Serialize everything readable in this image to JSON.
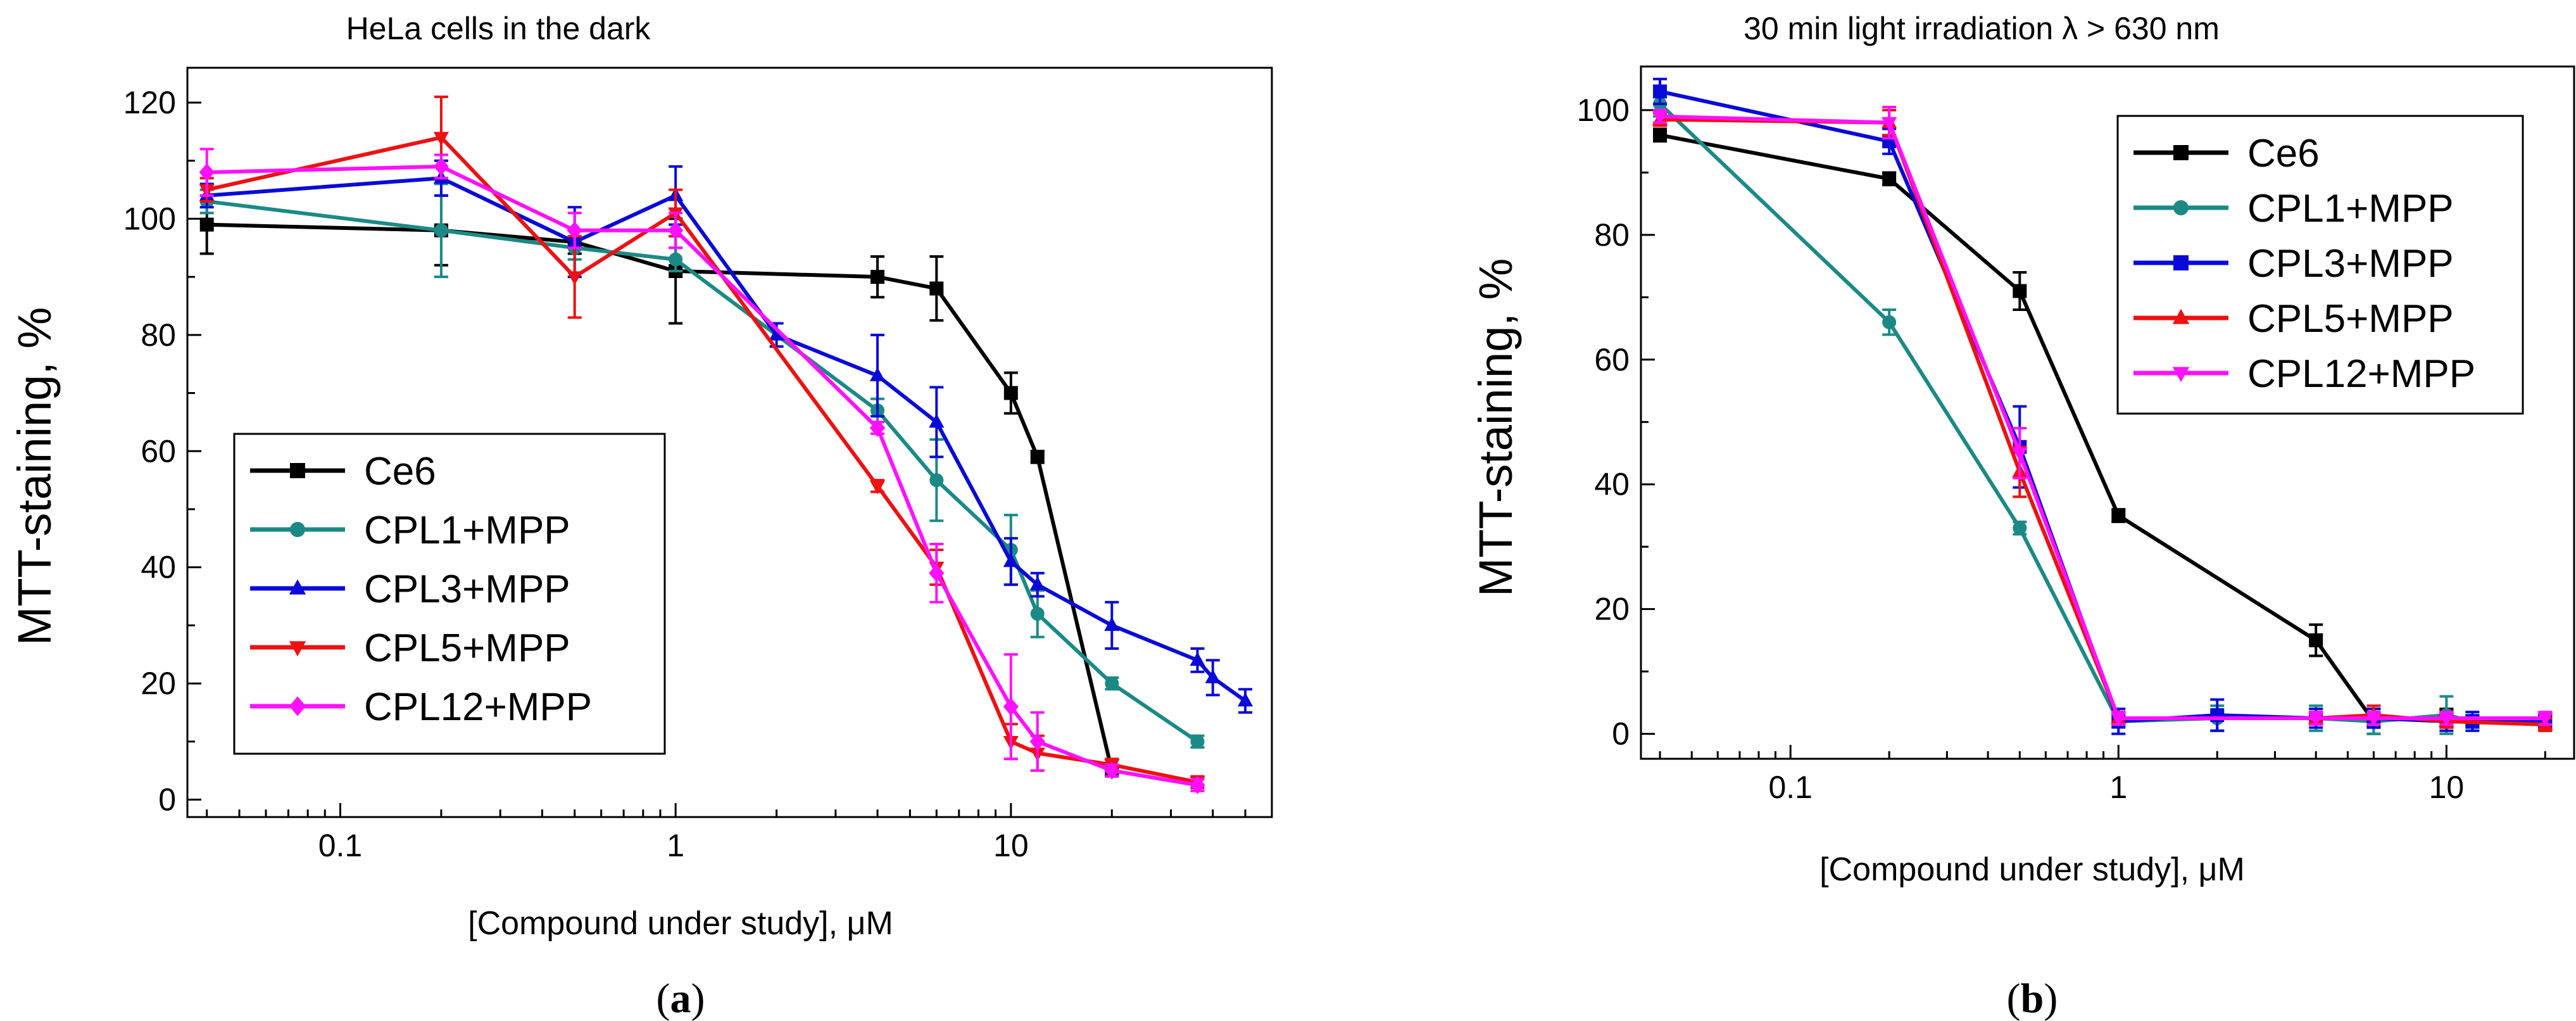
{
  "chart_data": [
    {
      "type": "line",
      "panel_label": "a",
      "title": "HeLa cells in the dark",
      "xlabel": "[Compound under study], μM",
      "ylabel": "MTT-staining, %",
      "xscale": "log",
      "xlim": [
        0.035,
        60
      ],
      "ylim": [
        -3,
        126
      ],
      "x_ticks": [
        0.1,
        1,
        10
      ],
      "x_tick_labels": [
        "0.1",
        "1",
        "10"
      ],
      "y_ticks": [
        0,
        20,
        40,
        60,
        80,
        100,
        120
      ],
      "y_tick_labels": [
        "0",
        "20",
        "40",
        "60",
        "80",
        "100",
        "120"
      ],
      "legend_position": "lower-left",
      "series": [
        {
          "name": "Ce6",
          "color": "#000000",
          "marker": "square",
          "x": [
            0.04,
            0.2,
            0.5,
            1,
            4,
            6,
            10,
            12,
            20
          ],
          "y": [
            99,
            98,
            96,
            91,
            90,
            88,
            70,
            59,
            5
          ],
          "err": [
            5,
            6,
            2,
            9,
            3.5,
            5.5,
            3.5,
            1,
            1
          ]
        },
        {
          "name": "CPL1+MPP",
          "color": "#1b8a86",
          "marker": "circle",
          "x": [
            0.04,
            0.2,
            0.5,
            1,
            4,
            6,
            10,
            12,
            20,
            36
          ],
          "y": [
            103,
            98,
            95,
            93,
            67,
            55,
            43,
            32,
            20,
            10
          ],
          "err": [
            2,
            8,
            2,
            2,
            2,
            7,
            6,
            4,
            1,
            1
          ]
        },
        {
          "name": "CPL3+MPP",
          "color": "#0a0ad8",
          "marker": "triangle-up",
          "x": [
            0.04,
            0.2,
            0.5,
            1,
            2,
            4,
            6,
            10,
            12,
            20,
            36,
            40,
            50
          ],
          "y": [
            104,
            107,
            96,
            104,
            80,
            73,
            65,
            41,
            37,
            30,
            24,
            21,
            17
          ],
          "err": [
            2,
            3,
            6,
            5,
            2,
            7,
            6,
            4,
            2,
            4,
            2,
            3,
            2
          ]
        },
        {
          "name": "CPL5+MPP",
          "color": "#ee1111",
          "marker": "triangle-down",
          "x": [
            0.04,
            0.2,
            0.5,
            1,
            4,
            6,
            10,
            12,
            20,
            36
          ],
          "y": [
            105,
            114,
            90,
            101,
            54,
            40,
            10,
            8,
            6,
            3
          ],
          "err": [
            2,
            7,
            7,
            4,
            1,
            3,
            3,
            3,
            1,
            1
          ]
        },
        {
          "name": "CPL12+MPP",
          "color": "#ff10ff",
          "marker": "diamond",
          "x": [
            0.04,
            0.2,
            0.5,
            1,
            4,
            6,
            10,
            12,
            20,
            36
          ],
          "y": [
            108,
            109,
            98,
            98,
            64,
            39,
            16,
            10,
            5,
            2.5
          ],
          "err": [
            4,
            2,
            3,
            3,
            1,
            5,
            9,
            5,
            1,
            1
          ]
        }
      ]
    },
    {
      "type": "line",
      "panel_label": "b",
      "title": "30 min light irradiation λ > 630 nm",
      "xlabel": "[Compound under study], μM",
      "ylabel": "MTT-staining, %",
      "xscale": "log",
      "xlim": [
        0.035,
        24.5
      ],
      "ylim": [
        -4,
        107
      ],
      "x_ticks": [
        0.1,
        1,
        10
      ],
      "x_tick_labels": [
        "0.1",
        "1",
        "10"
      ],
      "y_ticks": [
        0,
        20,
        40,
        60,
        80,
        100
      ],
      "y_tick_labels": [
        "0",
        "20",
        "40",
        "60",
        "80",
        "100"
      ],
      "legend_position": "top-right",
      "series": [
        {
          "name": "Ce6",
          "color": "#000000",
          "marker": "square",
          "x": [
            0.04,
            0.2,
            0.5,
            1,
            4,
            6,
            10,
            12,
            20
          ],
          "y": [
            96,
            89,
            71,
            35,
            15,
            2,
            3,
            2,
            2
          ],
          "err": [
            1,
            1,
            3,
            1,
            2.5,
            2,
            1,
            1,
            1
          ]
        },
        {
          "name": "CPL1+MPP",
          "color": "#1b8a86",
          "marker": "circle",
          "x": [
            0.04,
            0.2,
            0.5,
            1,
            2,
            4,
            6,
            10,
            12,
            20
          ],
          "y": [
            101,
            66,
            33,
            2,
            2.5,
            2.5,
            2,
            3,
            2,
            1.5
          ],
          "err": [
            2,
            2,
            1,
            1,
            2,
            2,
            2,
            3,
            1,
            1
          ]
        },
        {
          "name": "CPL3+MPP",
          "color": "#0a0ad8",
          "marker": "square",
          "x": [
            0.04,
            0.2,
            0.5,
            1,
            2,
            4,
            6,
            10,
            12,
            20
          ],
          "y": [
            103,
            95,
            46,
            2,
            3,
            2.5,
            2.5,
            2,
            2,
            2
          ],
          "err": [
            2,
            2,
            6.5,
            2,
            2.5,
            1.5,
            1.5,
            1.5,
            1.5,
            1
          ]
        },
        {
          "name": "CPL5+MPP",
          "color": "#ee1111",
          "marker": "triangle-up",
          "x": [
            0.04,
            0.2,
            0.5,
            1,
            4,
            6,
            10,
            20
          ],
          "y": [
            98.5,
            98,
            42,
            2.5,
            2.5,
            3,
            2,
            1.5
          ],
          "err": [
            1,
            2,
            4,
            1,
            1,
            1.5,
            1,
            1
          ]
        },
        {
          "name": "CPL12+MPP",
          "color": "#ff10ff",
          "marker": "triangle-down",
          "x": [
            0.04,
            0.2,
            0.5,
            1,
            4,
            6,
            10,
            20
          ],
          "y": [
            99,
            98,
            45,
            2.5,
            2.5,
            2.5,
            2.5,
            2.5
          ],
          "err": [
            1,
            2.5,
            4,
            1,
            1,
            1,
            1,
            1
          ]
        }
      ]
    }
  ]
}
